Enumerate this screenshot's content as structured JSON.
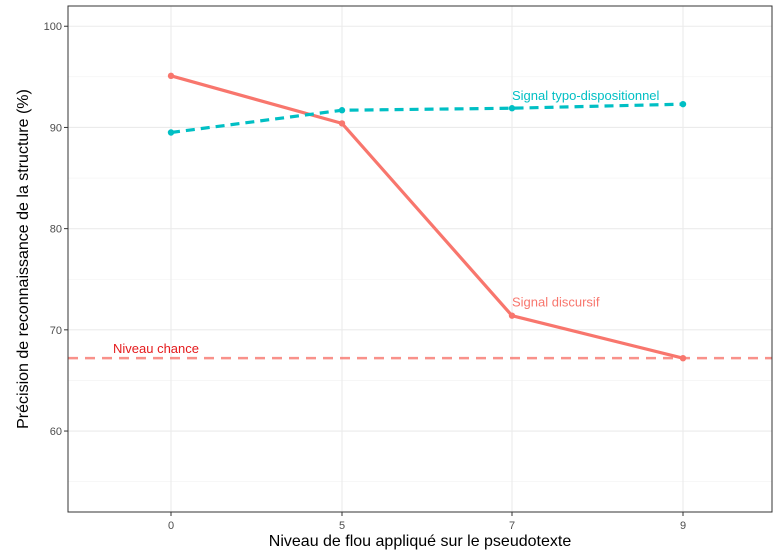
{
  "chart_data": {
    "type": "line",
    "xlabel": "Niveau de flou appliqué sur le pseudotexte",
    "ylabel": "Précision de reconnaissance de la structure (%)",
    "categories": [
      "0",
      "5",
      "7",
      "9"
    ],
    "ylim": [
      52,
      102
    ],
    "y_ticks": [
      60,
      70,
      80,
      90,
      100
    ],
    "grid": true,
    "series": [
      {
        "name": "Signal discursif",
        "color": "#F8766D",
        "line_style": "solid",
        "values": [
          95.1,
          90.4,
          71.4,
          67.2
        ]
      },
      {
        "name": "Signal typo-dispositionnel",
        "color": "#00BFC4",
        "line_style": "dashed",
        "values": [
          89.5,
          91.7,
          91.9,
          92.3
        ]
      }
    ],
    "reference_line": {
      "label": "Niveau chance",
      "value": 67.2,
      "color": "#F8766D",
      "label_color": "#E41A1C",
      "line_style": "dashed"
    }
  }
}
